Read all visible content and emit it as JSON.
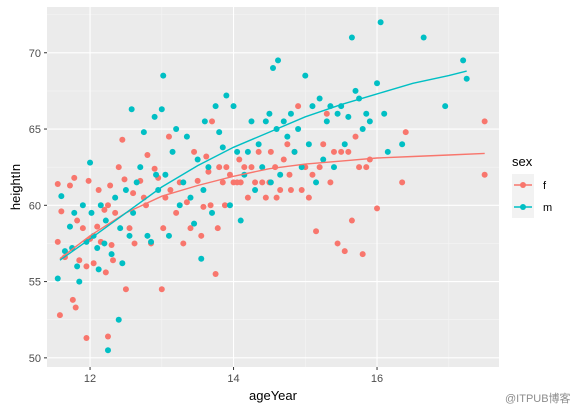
{
  "chart_data": {
    "type": "scatter",
    "xlabel": "ageYear",
    "ylabel": "heightIn",
    "xlim": [
      11.4,
      17.7
    ],
    "ylim": [
      49.4,
      73.0
    ],
    "x_ticks": [
      12,
      14,
      16
    ],
    "y_ticks": [
      50,
      55,
      60,
      65,
      70
    ],
    "grid": true,
    "legend": {
      "title": "sex",
      "position": "right"
    },
    "series": [
      {
        "name": "f",
        "color": "#F8766D",
        "points": [
          [
            11.55,
            61.4
          ],
          [
            11.6,
            59.6
          ],
          [
            11.55,
            57.6
          ],
          [
            11.58,
            52.8
          ],
          [
            11.65,
            56.6
          ],
          [
            11.72,
            61.3
          ],
          [
            11.78,
            61.8
          ],
          [
            11.76,
            53.8
          ],
          [
            11.8,
            53.3
          ],
          [
            11.82,
            59.0
          ],
          [
            11.85,
            56.4
          ],
          [
            11.9,
            58.5
          ],
          [
            11.95,
            56.0
          ],
          [
            11.95,
            51.3
          ],
          [
            11.98,
            61.6
          ],
          [
            12.0,
            57.8
          ],
          [
            12.05,
            56.2
          ],
          [
            12.1,
            58.6
          ],
          [
            12.12,
            61.0
          ],
          [
            12.15,
            57.6
          ],
          [
            12.2,
            59.7
          ],
          [
            12.22,
            55.6
          ],
          [
            12.25,
            51.4
          ],
          [
            12.25,
            60.0
          ],
          [
            12.28,
            61.3
          ],
          [
            12.3,
            57.4
          ],
          [
            12.32,
            56.4
          ],
          [
            12.35,
            59.5
          ],
          [
            12.4,
            62.5
          ],
          [
            12.45,
            64.3
          ],
          [
            12.48,
            61.7
          ],
          [
            12.5,
            54.5
          ],
          [
            12.55,
            58.5
          ],
          [
            12.6,
            60.8
          ],
          [
            12.62,
            57.5
          ],
          [
            12.7,
            61.6
          ],
          [
            12.75,
            60.5
          ],
          [
            12.78,
            60.0
          ],
          [
            12.8,
            63.3
          ],
          [
            12.85,
            57.5
          ],
          [
            12.9,
            62.4
          ],
          [
            12.95,
            61.8
          ],
          [
            13.0,
            54.5
          ],
          [
            13.02,
            58.5
          ],
          [
            13.05,
            60.5
          ],
          [
            13.1,
            64.5
          ],
          [
            13.12,
            61.0
          ],
          [
            13.2,
            59.5
          ],
          [
            13.25,
            61.5
          ],
          [
            13.3,
            57.5
          ],
          [
            13.35,
            60.2
          ],
          [
            13.4,
            58.5
          ],
          [
            13.45,
            63.5
          ],
          [
            13.5,
            61.6
          ],
          [
            13.55,
            58.0
          ],
          [
            13.58,
            59.9
          ],
          [
            13.62,
            63.2
          ],
          [
            13.65,
            62.2
          ],
          [
            13.68,
            60.0
          ],
          [
            13.7,
            65.5
          ],
          [
            13.75,
            55.5
          ],
          [
            13.78,
            58.5
          ],
          [
            13.8,
            62.5
          ],
          [
            13.85,
            61.5
          ],
          [
            13.88,
            60.0
          ],
          [
            13.9,
            62.5
          ],
          [
            13.95,
            62.0
          ],
          [
            14.0,
            61.5
          ],
          [
            14.05,
            61.5
          ],
          [
            14.08,
            63.0
          ],
          [
            14.1,
            61.5
          ],
          [
            14.15,
            62.5
          ],
          [
            14.2,
            60.5
          ],
          [
            14.25,
            62.5
          ],
          [
            14.3,
            61.5
          ],
          [
            14.35,
            63.5
          ],
          [
            14.4,
            61.5
          ],
          [
            14.45,
            60.5
          ],
          [
            14.5,
            61.5
          ],
          [
            14.52,
            63.5
          ],
          [
            14.58,
            62.5
          ],
          [
            14.6,
            60.5
          ],
          [
            14.65,
            61.0
          ],
          [
            14.7,
            63.0
          ],
          [
            14.75,
            64.0
          ],
          [
            14.78,
            62.0
          ],
          [
            14.8,
            61.0
          ],
          [
            14.85,
            63.5
          ],
          [
            14.9,
            66.5
          ],
          [
            14.95,
            61.0
          ],
          [
            15.0,
            62.5
          ],
          [
            15.05,
            60.5
          ],
          [
            15.1,
            62.0
          ],
          [
            15.15,
            58.3
          ],
          [
            15.2,
            62.5
          ],
          [
            15.25,
            64.0
          ],
          [
            15.3,
            66.0
          ],
          [
            15.35,
            61.5
          ],
          [
            15.4,
            63.5
          ],
          [
            15.45,
            57.5
          ],
          [
            15.5,
            63.5
          ],
          [
            15.55,
            57.0
          ],
          [
            15.6,
            63.5
          ],
          [
            15.65,
            59.0
          ],
          [
            15.7,
            64.5
          ],
          [
            15.75,
            62.5
          ],
          [
            15.8,
            56.8
          ],
          [
            15.85,
            62.5
          ],
          [
            15.9,
            63.0
          ],
          [
            16.0,
            59.8
          ],
          [
            16.35,
            61.5
          ],
          [
            16.4,
            64.8
          ],
          [
            17.5,
            65.5
          ],
          [
            17.5,
            62.0
          ]
        ]
      },
      {
        "name": "m",
        "color": "#00BFC4",
        "points": [
          [
            11.55,
            55.2
          ],
          [
            11.6,
            60.6
          ],
          [
            11.65,
            57.0
          ],
          [
            11.72,
            58.6
          ],
          [
            11.75,
            57.2
          ],
          [
            11.78,
            59.5
          ],
          [
            11.82,
            56.0
          ],
          [
            11.85,
            55.0
          ],
          [
            11.9,
            60.0
          ],
          [
            11.95,
            57.6
          ],
          [
            12.0,
            62.8
          ],
          [
            12.02,
            59.5
          ],
          [
            12.05,
            58.0
          ],
          [
            12.1,
            57.2
          ],
          [
            12.12,
            55.8
          ],
          [
            12.15,
            60.0
          ],
          [
            12.2,
            57.5
          ],
          [
            12.22,
            59.0
          ],
          [
            12.25,
            50.5
          ],
          [
            12.3,
            56.8
          ],
          [
            12.35,
            60.5
          ],
          [
            12.4,
            52.5
          ],
          [
            12.42,
            58.5
          ],
          [
            12.45,
            56.2
          ],
          [
            12.5,
            61.0
          ],
          [
            12.55,
            58.0
          ],
          [
            12.58,
            66.3
          ],
          [
            12.6,
            59.5
          ],
          [
            12.65,
            61.5
          ],
          [
            12.7,
            62.5
          ],
          [
            12.75,
            64.8
          ],
          [
            12.8,
            58.0
          ],
          [
            12.85,
            57.6
          ],
          [
            12.9,
            65.8
          ],
          [
            12.92,
            62.0
          ],
          [
            12.95,
            61.0
          ],
          [
            13.0,
            66.3
          ],
          [
            13.02,
            68.5
          ],
          [
            13.05,
            62.0
          ],
          [
            13.1,
            58.0
          ],
          [
            13.15,
            63.5
          ],
          [
            13.2,
            65.0
          ],
          [
            13.25,
            60.0
          ],
          [
            13.3,
            61.5
          ],
          [
            13.35,
            64.5
          ],
          [
            13.4,
            60.5
          ],
          [
            13.45,
            58.8
          ],
          [
            13.5,
            63.0
          ],
          [
            13.55,
            56.5
          ],
          [
            13.58,
            61.0
          ],
          [
            13.6,
            65.5
          ],
          [
            13.65,
            62.5
          ],
          [
            13.7,
            59.5
          ],
          [
            13.75,
            66.5
          ],
          [
            13.8,
            64.8
          ],
          [
            13.85,
            63.8
          ],
          [
            13.9,
            67.2
          ],
          [
            13.95,
            60.0
          ],
          [
            14.0,
            66.5
          ],
          [
            14.05,
            63.5
          ],
          [
            14.1,
            59.0
          ],
          [
            14.15,
            62.0
          ],
          [
            14.2,
            63.5
          ],
          [
            14.25,
            65.5
          ],
          [
            14.3,
            61.0
          ],
          [
            14.35,
            64.0
          ],
          [
            14.4,
            62.5
          ],
          [
            14.45,
            65.5
          ],
          [
            14.5,
            66.0
          ],
          [
            14.52,
            61.5
          ],
          [
            14.55,
            69.0
          ],
          [
            14.6,
            65.0
          ],
          [
            14.62,
            69.5
          ],
          [
            14.65,
            62.0
          ],
          [
            14.7,
            65.5
          ],
          [
            14.75,
            64.5
          ],
          [
            14.8,
            66.0
          ],
          [
            14.85,
            63.5
          ],
          [
            14.9,
            65.0
          ],
          [
            14.95,
            62.5
          ],
          [
            15.0,
            68.5
          ],
          [
            15.05,
            64.0
          ],
          [
            15.1,
            66.5
          ],
          [
            15.15,
            61.5
          ],
          [
            15.2,
            67.0
          ],
          [
            15.25,
            63.0
          ],
          [
            15.3,
            65.5
          ],
          [
            15.35,
            66.5
          ],
          [
            15.4,
            62.5
          ],
          [
            15.45,
            66.0
          ],
          [
            15.5,
            66.5
          ],
          [
            15.55,
            64.0
          ],
          [
            15.6,
            65.8
          ],
          [
            15.65,
            71.0
          ],
          [
            15.7,
            67.5
          ],
          [
            15.75,
            67.0
          ],
          [
            15.8,
            65.0
          ],
          [
            15.85,
            66.0
          ],
          [
            15.9,
            65.5
          ],
          [
            16.0,
            68.0
          ],
          [
            16.05,
            72.0
          ],
          [
            16.1,
            66.0
          ],
          [
            16.15,
            63.5
          ],
          [
            16.35,
            64.0
          ],
          [
            16.65,
            71.0
          ],
          [
            16.95,
            66.5
          ],
          [
            17.2,
            69.5
          ],
          [
            17.25,
            68.3
          ]
        ]
      }
    ],
    "smooth_lines": [
      {
        "name": "f",
        "color": "#F8766D",
        "points": [
          [
            11.58,
            56.5
          ],
          [
            12.0,
            58.0
          ],
          [
            12.5,
            59.5
          ],
          [
            13.0,
            60.6
          ],
          [
            13.5,
            61.3
          ],
          [
            14.0,
            61.9
          ],
          [
            14.5,
            62.4
          ],
          [
            15.0,
            62.7
          ],
          [
            15.5,
            62.9
          ],
          [
            16.0,
            63.1
          ],
          [
            16.5,
            63.2
          ],
          [
            17.0,
            63.3
          ],
          [
            17.5,
            63.4
          ]
        ]
      },
      {
        "name": "m",
        "color": "#00BFC4",
        "points": [
          [
            11.58,
            56.4
          ],
          [
            12.0,
            57.8
          ],
          [
            12.5,
            59.5
          ],
          [
            13.0,
            61.2
          ],
          [
            13.5,
            62.6
          ],
          [
            14.0,
            63.8
          ],
          [
            14.5,
            64.8
          ],
          [
            15.0,
            65.8
          ],
          [
            15.5,
            66.6
          ],
          [
            16.0,
            67.3
          ],
          [
            16.5,
            68.0
          ],
          [
            17.0,
            68.5
          ],
          [
            17.25,
            68.8
          ]
        ]
      }
    ]
  },
  "watermark": "@ITPUB博客"
}
